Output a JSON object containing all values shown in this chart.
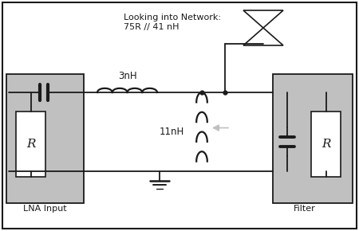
{
  "white": "#ffffff",
  "gray": "#c0c0c0",
  "dark": "#1a1a1a",
  "title_line1": "Looking into Network:",
  "title_line2": "75R // 41 nH",
  "label_3nH": "3nH",
  "label_11nH": "11nH",
  "label_lna": "LNA Input",
  "label_filter": "Filter"
}
